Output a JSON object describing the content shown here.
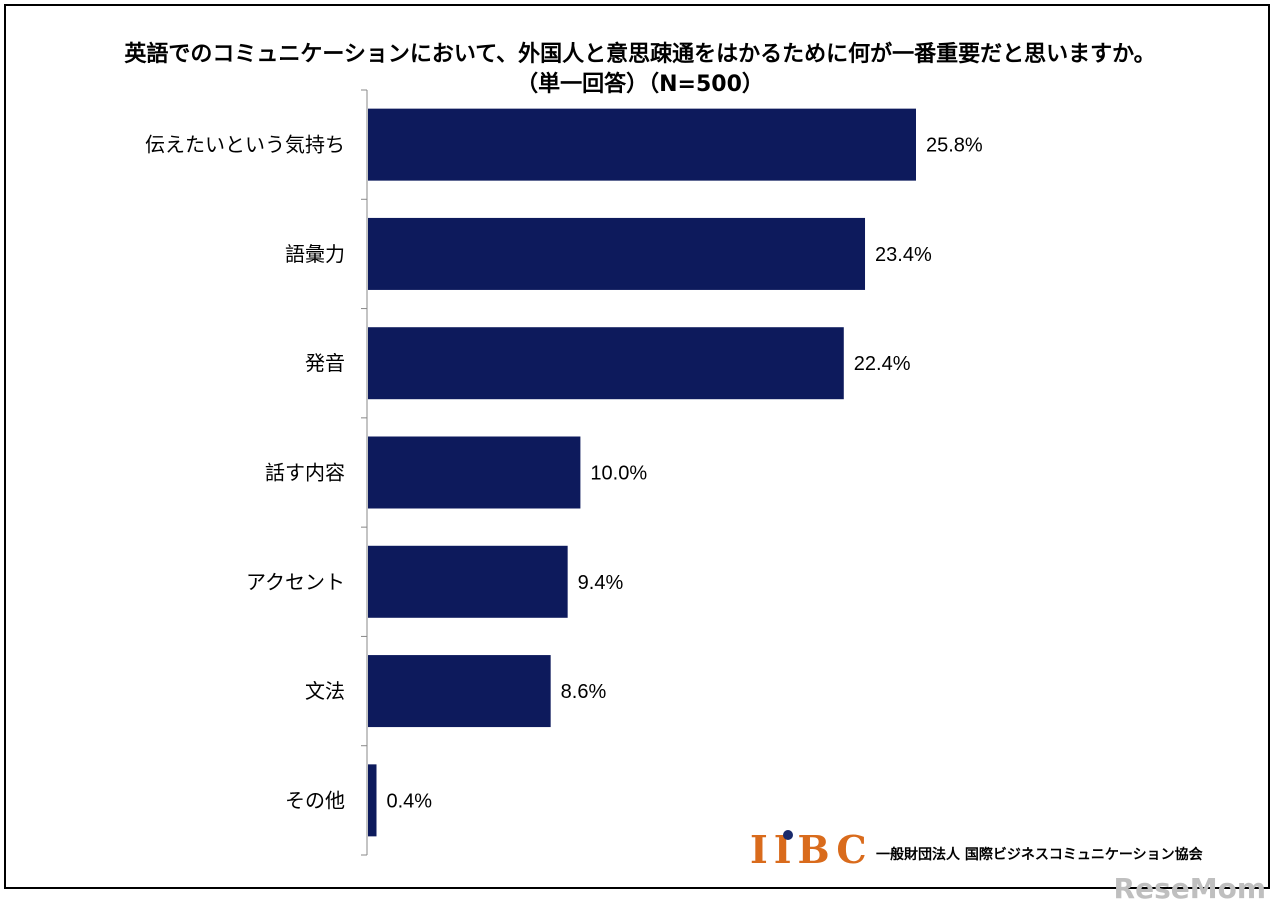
{
  "chart_data": {
    "type": "bar",
    "orientation": "horizontal",
    "title": "英語でのコミュニケーションにおいて、外国人と意思疎通をはかるために何が一番重要だと思いますか。",
    "subtitle": "（単一回答）（N=500）",
    "categories": [
      "伝えたいという気持ち",
      "語彙力",
      "発音",
      "話す内容",
      "アクセント",
      "文法",
      "その他"
    ],
    "values": [
      25.8,
      23.4,
      22.4,
      10.0,
      9.4,
      8.6,
      0.4
    ],
    "value_labels": [
      "25.8%",
      "23.4%",
      "22.4%",
      "10.0%",
      "9.4%",
      "8.6%",
      "0.4%"
    ],
    "xlim": [
      0,
      30
    ],
    "grid": false,
    "legend": "none",
    "bar_color": "#0d1a5c"
  },
  "footer": {
    "logo_text": "IIBC",
    "organization": "一般財団法人 国際ビジネスコミュニケーション協会"
  },
  "watermark": "ReseMom",
  "colors": {
    "bar": "#0d1a5c",
    "logo": "#d96b1c",
    "logo_dot": "#1a2a6c"
  }
}
